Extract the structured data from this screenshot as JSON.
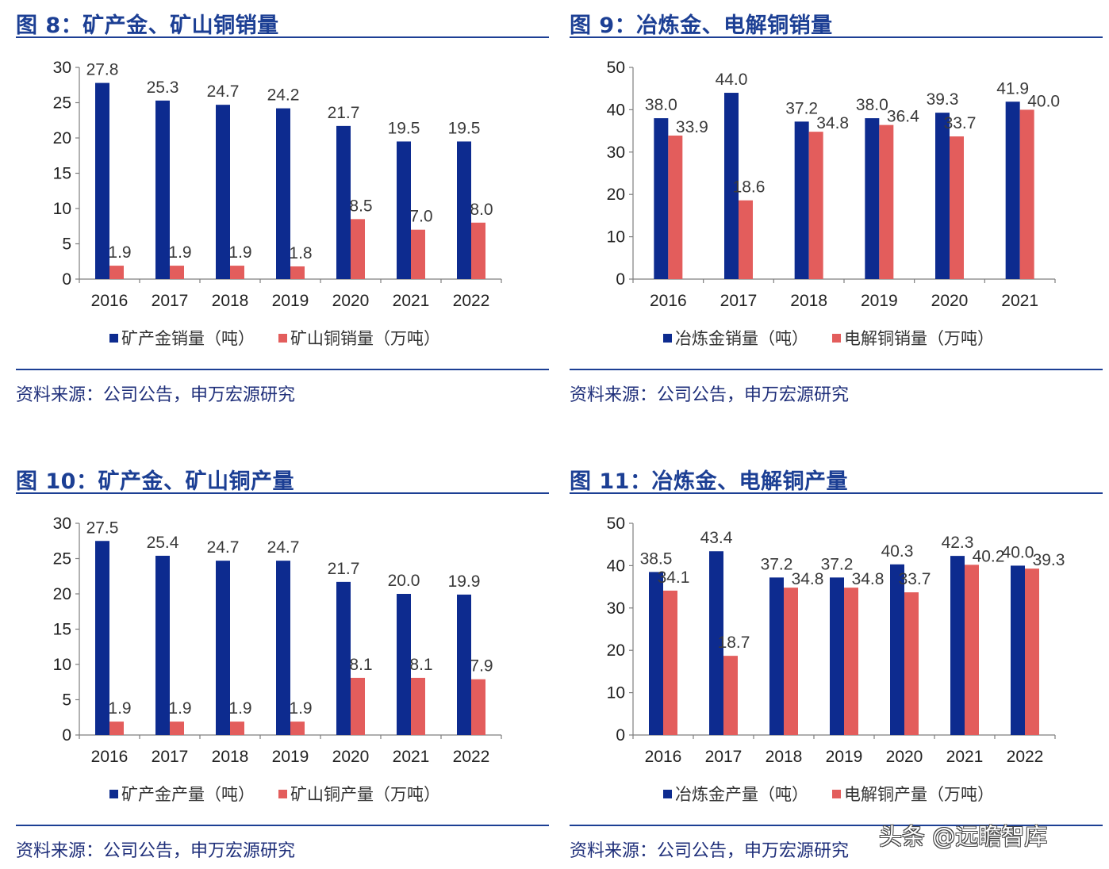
{
  "colors": {
    "series1": "#0d2b8f",
    "series2": "#e35d5c",
    "title": "#1c3f94",
    "axis": "#7f7f7f"
  },
  "watermark": "头条 @远瞻智库",
  "chart_data": [
    {
      "type": "bar",
      "title": "图 8：矿产金、矿山铜销量",
      "source": "资料来源：公司公告，申万宏源研究",
      "categories": [
        "2016",
        "2017",
        "2018",
        "2019",
        "2020",
        "2021",
        "2022"
      ],
      "ylim": [
        0,
        30
      ],
      "yticks": [
        "0",
        "5",
        "10",
        "15",
        "20",
        "25",
        "30"
      ],
      "series": [
        {
          "name": "矿产金销量（吨）",
          "values": [
            27.8,
            25.3,
            24.7,
            24.2,
            21.7,
            19.5,
            19.5
          ],
          "labels": [
            "27.8",
            "25.3",
            "24.7",
            "24.2",
            "21.7",
            "19.5",
            "19.5"
          ]
        },
        {
          "name": "矿山铜销量（万吨）",
          "values": [
            1.9,
            1.9,
            1.9,
            1.8,
            8.5,
            7.0,
            8.0
          ],
          "labels": [
            "1.9",
            "1.9",
            "1.9",
            "1.8",
            "8.5",
            "7.0",
            "8.0"
          ]
        }
      ],
      "legend": "bottom",
      "grid": false
    },
    {
      "type": "bar",
      "title": "图 9：冶炼金、电解铜销量",
      "source": "资料来源：公司公告，申万宏源研究",
      "categories": [
        "2016",
        "2017",
        "2018",
        "2019",
        "2020",
        "2021"
      ],
      "ylim": [
        0,
        50
      ],
      "yticks": [
        "0",
        "10",
        "20",
        "30",
        "40",
        "50"
      ],
      "series": [
        {
          "name": "冶炼金销量（吨）",
          "values": [
            38.0,
            44.0,
            37.2,
            38.0,
            39.3,
            41.9
          ],
          "labels": [
            "38.0",
            "44.0",
            "37.2",
            "38.0",
            "39.3",
            "41.9"
          ]
        },
        {
          "name": "电解铜销量（万吨）",
          "values": [
            33.9,
            18.6,
            34.8,
            36.4,
            33.7,
            40.0
          ],
          "labels": [
            "33.9",
            "18.6",
            "34.8",
            "36.4",
            "33.7",
            "40.0"
          ]
        }
      ],
      "legend": "bottom",
      "grid": false
    },
    {
      "type": "bar",
      "title": "图 10：矿产金、矿山铜产量",
      "source": "资料来源：公司公告，申万宏源研究",
      "categories": [
        "2016",
        "2017",
        "2018",
        "2019",
        "2020",
        "2021",
        "2022"
      ],
      "ylim": [
        0,
        30
      ],
      "yticks": [
        "0",
        "5",
        "10",
        "15",
        "20",
        "25",
        "30"
      ],
      "series": [
        {
          "name": "矿产金产量（吨）",
          "values": [
            27.5,
            25.4,
            24.7,
            24.7,
            21.7,
            20.0,
            19.9
          ],
          "labels": [
            "27.5",
            "25.4",
            "24.7",
            "24.7",
            "21.7",
            "20.0",
            "19.9"
          ]
        },
        {
          "name": "矿山铜产量（万吨）",
          "values": [
            1.9,
            1.9,
            1.9,
            1.9,
            8.1,
            8.1,
            7.9
          ],
          "labels": [
            "1.9",
            "1.9",
            "1.9",
            "1.9",
            "8.1",
            "8.1",
            "7.9"
          ]
        }
      ],
      "legend": "bottom",
      "grid": false
    },
    {
      "type": "bar",
      "title": "图 11：冶炼金、电解铜产量",
      "source": "资料来源：公司公告，申万宏源研究",
      "categories": [
        "2016",
        "2017",
        "2018",
        "2019",
        "2020",
        "2021",
        "2022"
      ],
      "ylim": [
        0,
        50
      ],
      "yticks": [
        "0",
        "10",
        "20",
        "30",
        "40",
        "50"
      ],
      "series": [
        {
          "name": "冶炼金产量（吨）",
          "values": [
            38.5,
            43.4,
            37.2,
            37.2,
            40.3,
            42.3,
            40.0
          ],
          "labels": [
            "38.5",
            "43.4",
            "37.2",
            "37.2",
            "40.3",
            "42.3",
            "40.0"
          ]
        },
        {
          "name": "电解铜产量（万吨）",
          "values": [
            34.1,
            18.7,
            34.8,
            34.8,
            33.7,
            40.2,
            39.3
          ],
          "labels": [
            "34.1",
            "18.7",
            "34.8",
            "34.8",
            "33.7",
            "40.2",
            "39.3"
          ]
        }
      ],
      "legend": "bottom",
      "grid": false
    }
  ]
}
